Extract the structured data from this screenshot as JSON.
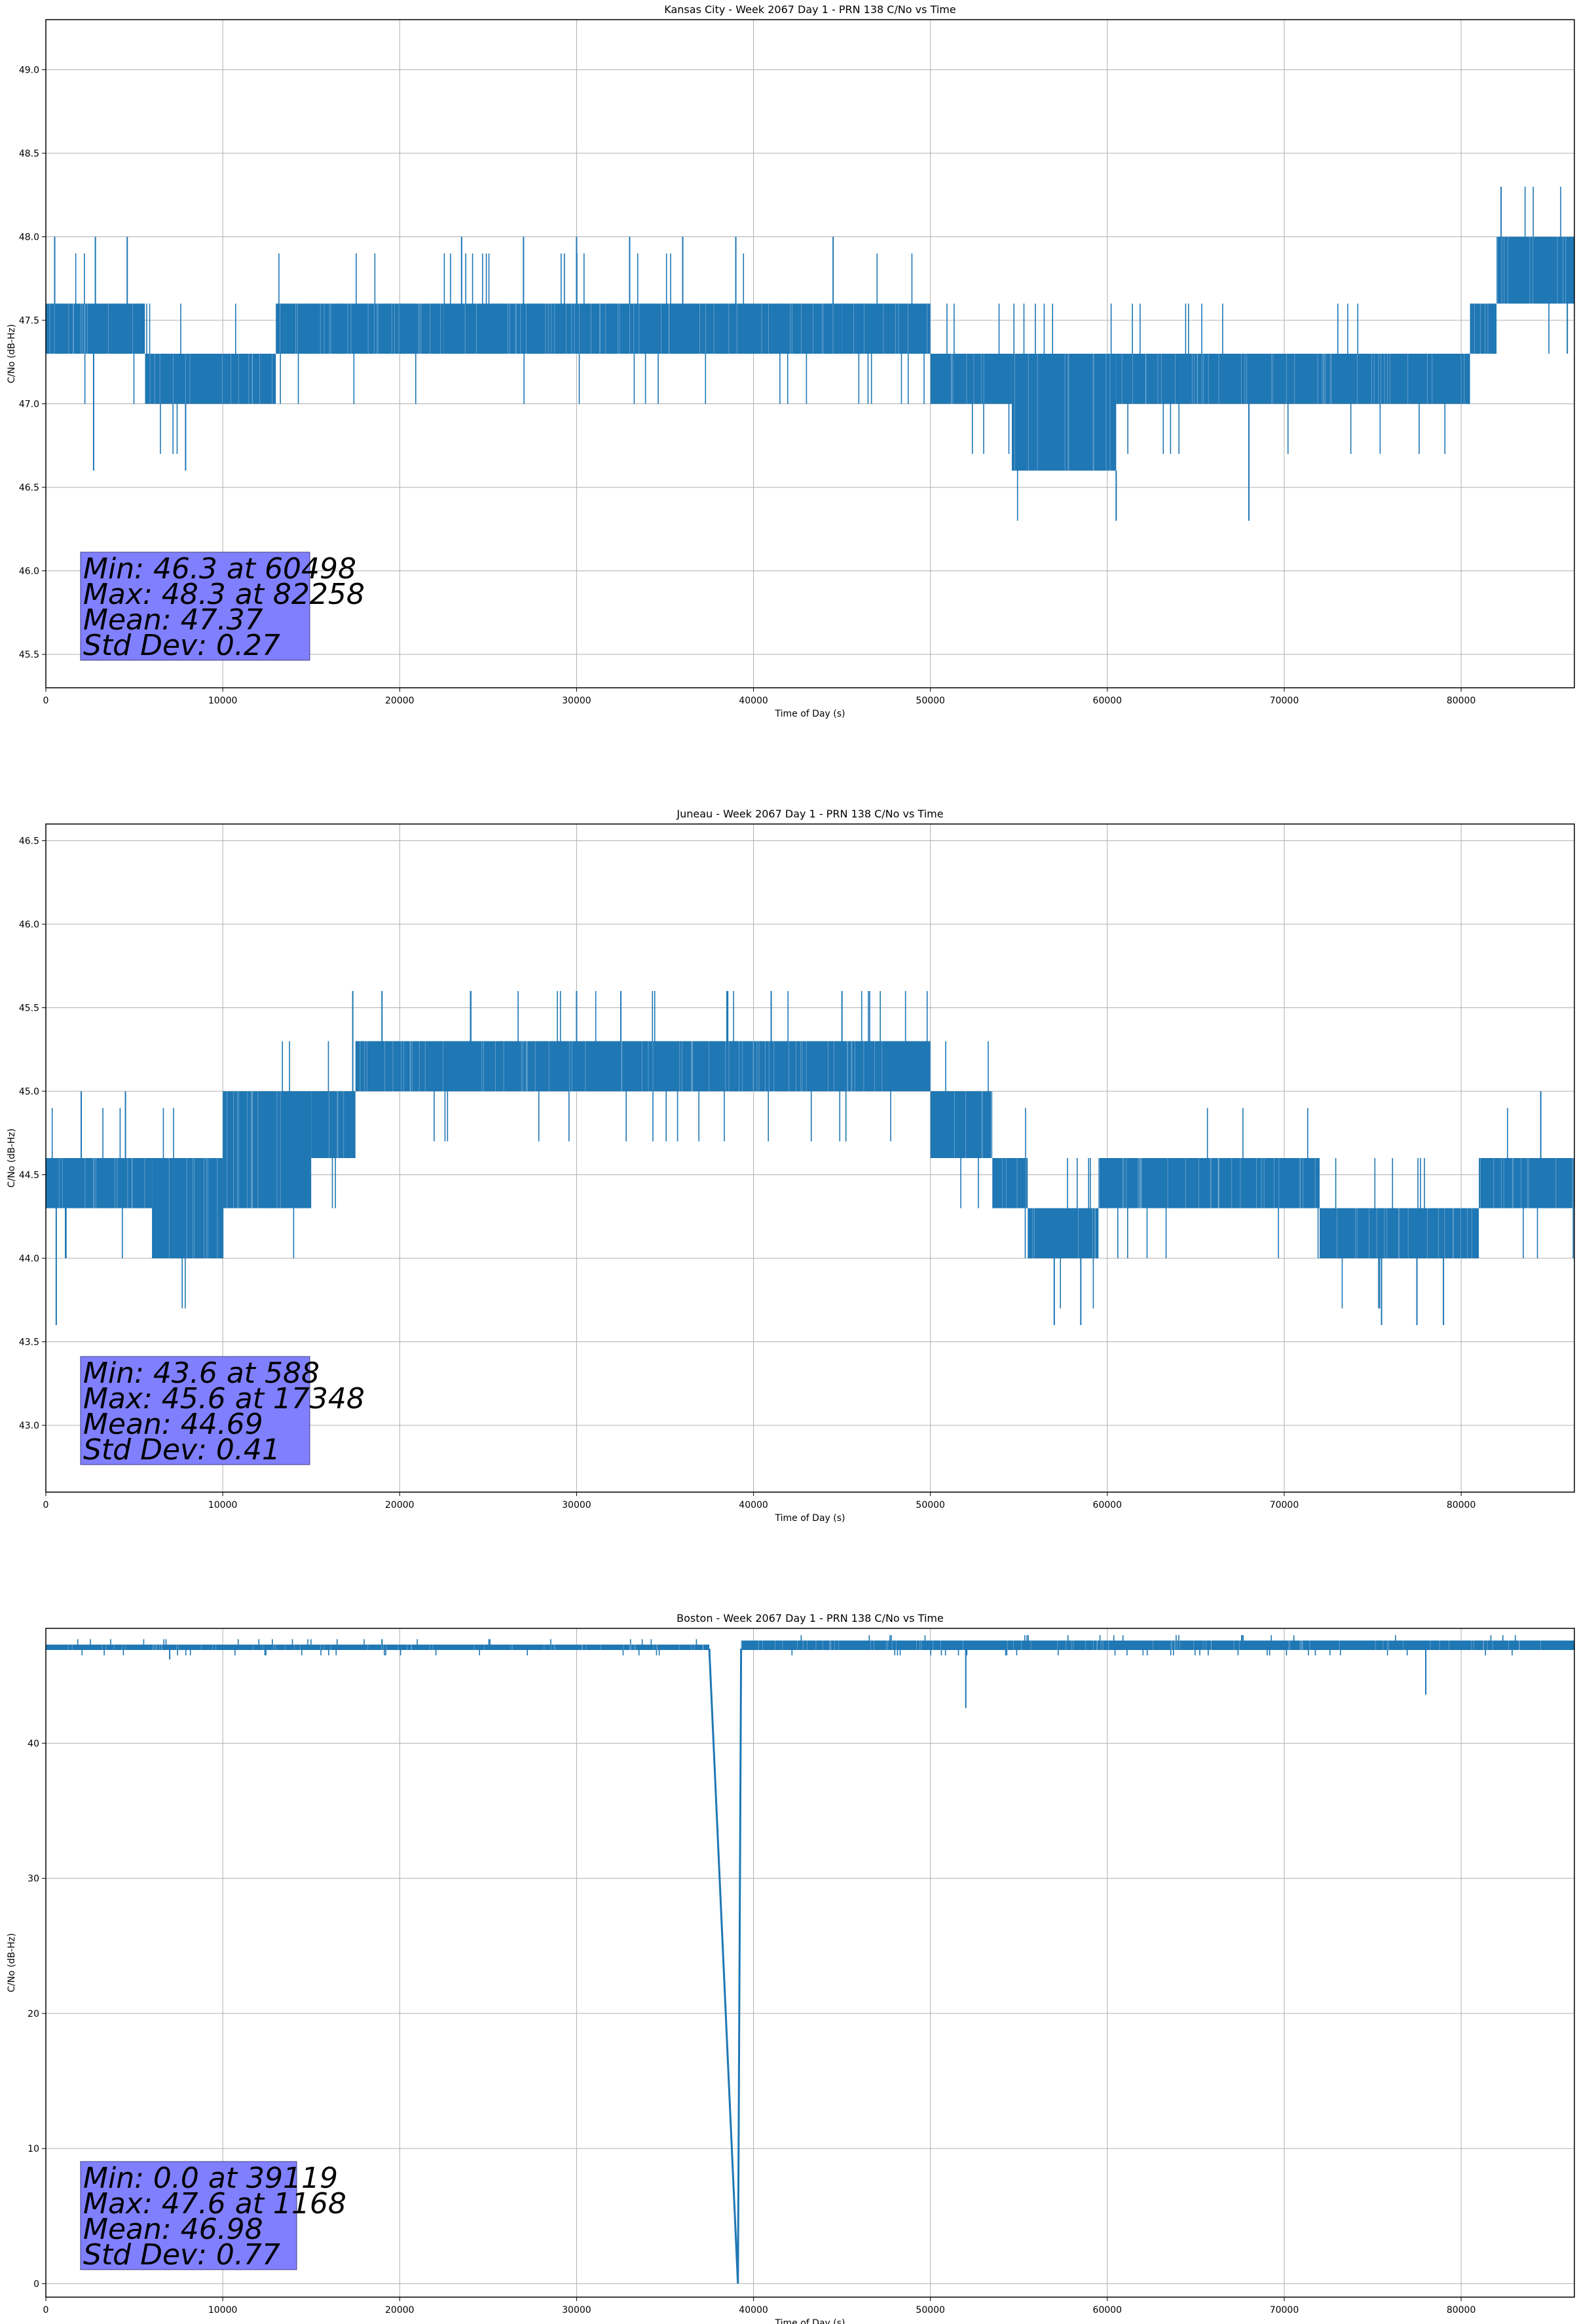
{
  "chart_data": [
    {
      "type": "line",
      "title": "Kansas City - Week 2067 Day 1 - PRN 138 C/No vs Time",
      "xlabel": "Time of Day (s)",
      "ylabel": "C/No (dB-Hz)",
      "xlim": [
        0,
        86400
      ],
      "ylim": [
        45.3,
        49.3
      ],
      "xticks": [
        0,
        10000,
        20000,
        30000,
        40000,
        50000,
        60000,
        70000,
        80000
      ],
      "yticks": [
        45.5,
        46.0,
        46.5,
        47.0,
        47.5,
        48.0,
        48.5,
        49.0
      ],
      "grid": true,
      "series_color": "#1f77b4",
      "stats": [
        "Min: 46.3 at 60498",
        "Max: 48.3 at 82258",
        "Mean: 47.37",
        "Std Dev: 0.27"
      ],
      "segments": [
        {
          "x": [
            0,
            5600
          ],
          "y": [
            47.3,
            47.6
          ]
        },
        {
          "x": [
            5600,
            13000
          ],
          "y": [
            47.0,
            47.3
          ]
        },
        {
          "x": [
            13000,
            22500
          ],
          "y": [
            47.3,
            47.6
          ]
        },
        {
          "x": [
            22500,
            45000
          ],
          "y": [
            47.3,
            47.6
          ]
        },
        {
          "x": [
            45000,
            50000
          ],
          "y": [
            47.3,
            47.6
          ]
        },
        {
          "x": [
            50000,
            54600
          ],
          "y": [
            47.0,
            47.3
          ]
        },
        {
          "x": [
            54600,
            60500
          ],
          "y": [
            46.6,
            47.3
          ]
        },
        {
          "x": [
            60500,
            80500
          ],
          "y": [
            47.0,
            47.3
          ]
        },
        {
          "x": [
            80500,
            82000
          ],
          "y": [
            47.3,
            47.6
          ]
        },
        {
          "x": [
            82000,
            86400
          ],
          "y": [
            47.6,
            48.0
          ]
        }
      ],
      "spikes": [
        {
          "x": 500,
          "y": 48.0
        },
        {
          "x": 2800,
          "y": 48.0
        },
        {
          "x": 2700,
          "y": 46.6
        },
        {
          "x": 4600,
          "y": 48.0
        },
        {
          "x": 7900,
          "y": 46.6
        },
        {
          "x": 23500,
          "y": 48.0
        },
        {
          "x": 27000,
          "y": 48.0
        },
        {
          "x": 30000,
          "y": 48.0
        },
        {
          "x": 33000,
          "y": 48.0
        },
        {
          "x": 36000,
          "y": 48.0
        },
        {
          "x": 39000,
          "y": 48.0
        },
        {
          "x": 44500,
          "y": 48.0
        },
        {
          "x": 60500,
          "y": 46.3
        },
        {
          "x": 68000,
          "y": 46.3
        },
        {
          "x": 82258,
          "y": 48.3
        },
        {
          "x": 86000,
          "y": 47.3
        }
      ]
    },
    {
      "type": "line",
      "title": "Juneau - Week 2067 Day 1 - PRN 138 C/No vs Time",
      "xlabel": "Time of Day (s)",
      "ylabel": "C/No (dB-Hz)",
      "xlim": [
        0,
        86400
      ],
      "ylim": [
        42.6,
        46.6
      ],
      "xticks": [
        0,
        10000,
        20000,
        30000,
        40000,
        50000,
        60000,
        70000,
        80000
      ],
      "yticks": [
        43.0,
        43.5,
        44.0,
        44.5,
        45.0,
        45.5,
        46.0,
        46.5
      ],
      "grid": true,
      "series_color": "#1f77b4",
      "stats": [
        "Min: 43.6 at 588",
        "Max: 45.6 at 17348",
        "Mean: 44.69",
        "Std Dev: 0.41"
      ],
      "segments": [
        {
          "x": [
            0,
            6000
          ],
          "y": [
            44.3,
            44.6
          ]
        },
        {
          "x": [
            6000,
            10000
          ],
          "y": [
            44.0,
            44.6
          ]
        },
        {
          "x": [
            10000,
            15000
          ],
          "y": [
            44.3,
            45.0
          ]
        },
        {
          "x": [
            15000,
            17500
          ],
          "y": [
            44.6,
            45.0
          ]
        },
        {
          "x": [
            17500,
            50000
          ],
          "y": [
            45.0,
            45.3
          ]
        },
        {
          "x": [
            50000,
            53500
          ],
          "y": [
            44.6,
            45.0
          ]
        },
        {
          "x": [
            53500,
            55500
          ],
          "y": [
            44.3,
            44.6
          ]
        },
        {
          "x": [
            55500,
            59500
          ],
          "y": [
            44.0,
            44.3
          ]
        },
        {
          "x": [
            59500,
            72000
          ],
          "y": [
            44.3,
            44.6
          ]
        },
        {
          "x": [
            72000,
            81000
          ],
          "y": [
            44.0,
            44.3
          ]
        },
        {
          "x": [
            81000,
            86400
          ],
          "y": [
            44.3,
            44.6
          ]
        }
      ],
      "spikes": [
        {
          "x": 588,
          "y": 43.6
        },
        {
          "x": 2000,
          "y": 45.0
        },
        {
          "x": 4500,
          "y": 45.0
        },
        {
          "x": 17348,
          "y": 45.6
        },
        {
          "x": 19000,
          "y": 45.6
        },
        {
          "x": 30000,
          "y": 45.6
        },
        {
          "x": 32500,
          "y": 45.6
        },
        {
          "x": 38500,
          "y": 45.6
        },
        {
          "x": 41000,
          "y": 45.6
        },
        {
          "x": 45000,
          "y": 45.6
        },
        {
          "x": 57000,
          "y": 43.6
        },
        {
          "x": 58500,
          "y": 43.6
        },
        {
          "x": 75500,
          "y": 43.6
        },
        {
          "x": 77500,
          "y": 43.6
        },
        {
          "x": 79000,
          "y": 43.6
        },
        {
          "x": 84500,
          "y": 45.0
        }
      ]
    },
    {
      "type": "line",
      "title": "Boston - Week 2067 Day 1 - PRN 138 C/No vs Time",
      "xlabel": "Time of Day (s)",
      "ylabel": "C/No (dB-Hz)",
      "xlim": [
        0,
        86400
      ],
      "ylim": [
        -1.0,
        48.5
      ],
      "xticks": [
        0,
        10000,
        20000,
        30000,
        40000,
        50000,
        60000,
        70000,
        80000
      ],
      "yticks": [
        0,
        10,
        20,
        30,
        40
      ],
      "grid": true,
      "series_color": "#1f77b4",
      "stats": [
        "Min: 0.0 at 39119",
        "Max: 47.6 at 1168",
        "Mean: 46.98",
        "Std Dev: 0.77"
      ],
      "segments": [
        {
          "x": [
            0,
            37500
          ],
          "y": [
            46.9,
            47.3
          ]
        },
        {
          "x": [
            39300,
            86400
          ],
          "y": [
            46.9,
            47.6
          ]
        }
      ],
      "dropout": {
        "x": [
          37500,
          39119,
          39300
        ],
        "y": [
          47.0,
          0.0,
          47.0
        ]
      },
      "spikes": [
        {
          "x": 7000,
          "y": 46.2
        },
        {
          "x": 52000,
          "y": 42.6
        },
        {
          "x": 78000,
          "y": 43.6
        },
        {
          "x": 86000,
          "y": 47.6
        }
      ]
    }
  ]
}
